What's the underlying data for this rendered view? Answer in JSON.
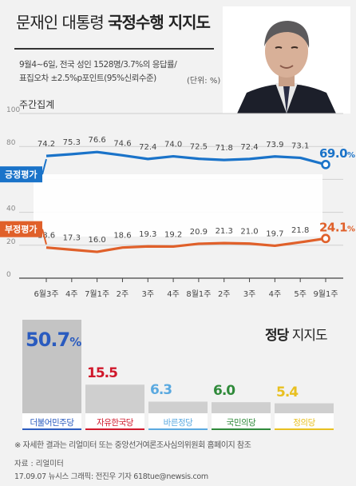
{
  "header": {
    "title_main": "문재인 대통령",
    "title_bold": "국정수행 지지도",
    "desc_line1": "9월4~6일, 전국 성인 1528명/3.7%의 응답률/",
    "desc_line2": "표집오차 ±2.5%p포인트(95%신뢰수준)",
    "unit": "(단위: %)",
    "weekly_label": "주간집계"
  },
  "chart_data": [
    {
      "type": "line",
      "title": "",
      "xlabel": "",
      "ylabel": "",
      "categories": [
        "6월3주",
        "4주",
        "7월1주",
        "2주",
        "3주",
        "4주",
        "8월1주",
        "2주",
        "3주",
        "4주",
        "5주",
        "9월1주"
      ],
      "yticks": [
        "0",
        "20",
        "40",
        "60",
        "80",
        "100"
      ],
      "ylim": [
        0,
        100
      ],
      "grid": true,
      "series": [
        {
          "name": "긍정평가",
          "color": "#1a73c9",
          "values": [
            74.2,
            75.3,
            76.6,
            74.6,
            72.4,
            74.0,
            72.5,
            71.8,
            72.4,
            73.9,
            73.1,
            69.0
          ],
          "labels": [
            "74.2",
            "75.3",
            "76.6",
            "74.6",
            "72.4",
            "74.0",
            "72.5",
            "71.8",
            "72.4",
            "73.9",
            "73.1",
            "69.0"
          ],
          "last_label": "69.0",
          "last_unit": "%"
        },
        {
          "name": "부정평가",
          "color": "#e0602a",
          "values": [
            18.6,
            17.3,
            16.0,
            18.6,
            19.3,
            19.2,
            20.9,
            21.3,
            21.0,
            19.7,
            21.8,
            24.1
          ],
          "labels": [
            "18.6",
            "17.3",
            "16.0",
            "18.6",
            "19.3",
            "19.2",
            "20.9",
            "21.3",
            "21.0",
            "19.7",
            "21.8",
            "24.1"
          ],
          "last_label": "24.1",
          "last_unit": "%"
        }
      ]
    },
    {
      "type": "bar",
      "title": "정당 지지도",
      "title_bold": "정당",
      "title_rest": "지지도",
      "xlabel": "",
      "ylabel": "",
      "categories": [
        "더불어민주당",
        "자유한국당",
        "바른정당",
        "국민의당",
        "정의당"
      ],
      "values": [
        50.7,
        15.5,
        6.3,
        6.0,
        5.4
      ],
      "labels": [
        "50.7",
        "15.5",
        "6.3",
        "6.0",
        "5.4"
      ],
      "first_unit": "%",
      "colors": [
        "#2a5bbf",
        "#d0182b",
        "#5aa9e0",
        "#2f8a3a",
        "#e8c020"
      ]
    }
  ],
  "footer": {
    "note": "※ 자세한 결과는 리얼미터 또는 중앙선거여론조사심의위원회 홈페이지 참조",
    "source": "자료 : 리얼미터",
    "credit": "17.09.07 뉴시스 그래픽: 전진우 기자 618tue@newsis.com"
  }
}
